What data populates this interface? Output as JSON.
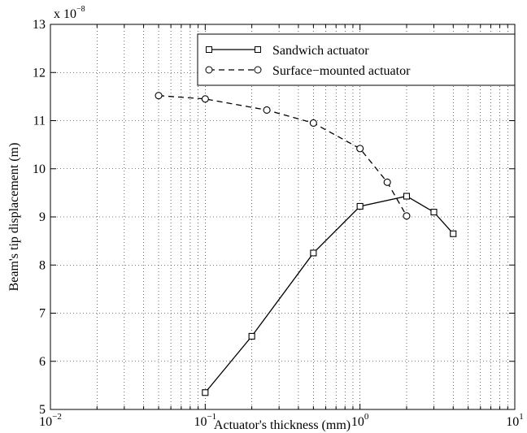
{
  "chart_data": {
    "type": "line",
    "xlabel": "Actuator's thickness (mm)",
    "ylabel": "Beam's tip displacement (m)",
    "y_multiplier": "x 10−8",
    "xscale": "log",
    "grid": true,
    "legend": "upper right",
    "xlim": [
      0.01,
      10
    ],
    "ylim": [
      5,
      13
    ],
    "xticks": [
      {
        "value": 0.01,
        "label": "10−2"
      },
      {
        "value": 0.1,
        "label": "10−1"
      },
      {
        "value": 1,
        "label": "100"
      },
      {
        "value": 10,
        "label": "101"
      }
    ],
    "yticks": [
      5,
      6,
      7,
      8,
      9,
      10,
      11,
      12,
      13
    ],
    "series": [
      {
        "name": "Sandwich actuator",
        "color": "#000000",
        "marker": "square",
        "dash": "solid",
        "x": [
          0.1,
          0.2,
          0.5,
          1,
          2,
          3,
          4
        ],
        "values": [
          5.35,
          6.52,
          8.25,
          9.22,
          9.43,
          9.1,
          8.65
        ]
      },
      {
        "name": "Surface−mounted actuator",
        "color": "#000000",
        "marker": "circle",
        "dash": "dashed",
        "x": [
          0.05,
          0.1,
          0.25,
          0.5,
          1,
          1.5,
          2
        ],
        "values": [
          11.52,
          11.45,
          11.22,
          10.95,
          10.42,
          9.72,
          9.02
        ]
      }
    ]
  }
}
